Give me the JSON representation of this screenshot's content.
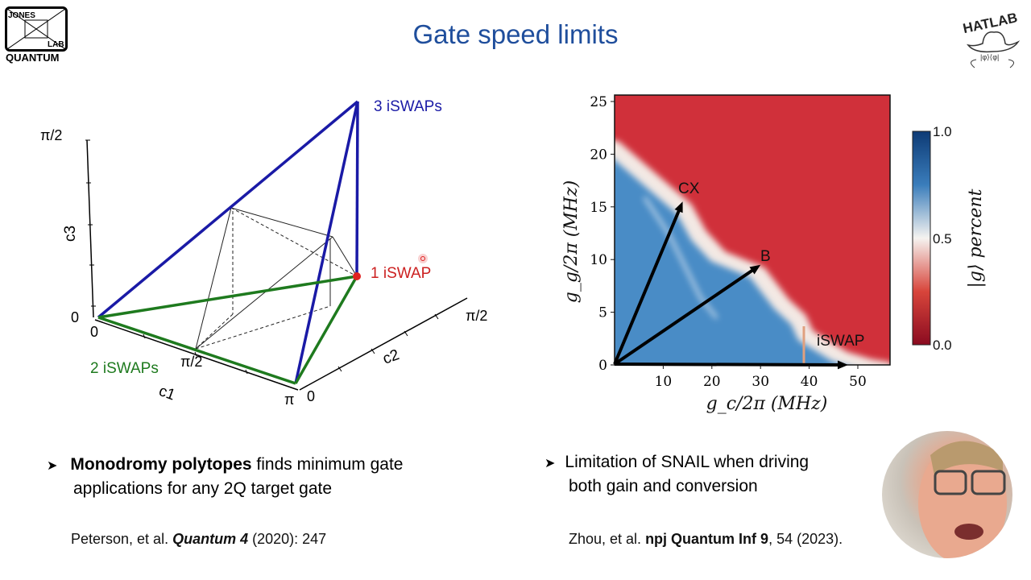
{
  "slide": {
    "title": "Gate speed limits",
    "logos": {
      "left": "JONES LAB QUANTUM",
      "right": "HATLAB"
    }
  },
  "polytope": {
    "labels": {
      "three_iswaps": "3 iSWAPs",
      "one_iswap": "1 iSWAP",
      "two_iswaps": "2 iSWAPs"
    },
    "axes": {
      "c1": {
        "label": "c1",
        "ticks": [
          "0",
          "π/2",
          "π"
        ]
      },
      "c2": {
        "label": "c2",
        "ticks": [
          "0",
          "π/2"
        ]
      },
      "c3": {
        "label": "c3",
        "ticks": [
          "0",
          "π/2"
        ]
      }
    },
    "colors": {
      "three": "#1a1aa6",
      "two": "#1e7a1e",
      "one": "#e02020"
    }
  },
  "heatmap": {
    "xlabel": "g_c/2π  (MHz)",
    "ylabel": "g_g/2π  (MHz)",
    "xticks": [
      "10",
      "20",
      "30",
      "40",
      "50"
    ],
    "yticks": [
      "0",
      "5",
      "10",
      "15",
      "20",
      "25"
    ],
    "colorbar": {
      "label": "|g⟩ percent",
      "ticks": [
        "1.0",
        "0.5",
        "0.0"
      ],
      "low_color": "#b2182b",
      "mid_color": "#f7f7f7",
      "high_color": "#2166ac"
    },
    "annotations": [
      "CX",
      "B",
      "iSWAP"
    ]
  },
  "left_text": {
    "bullet_bold": "Monodromy polytopes",
    "bullet_rest": " finds minimum gate",
    "bullet_line2": "applications for any 2Q target gate",
    "ref_pre": "Peterson, et al. ",
    "ref_journal": "Quantum 4",
    "ref_post": " (2020): 247"
  },
  "right_text": {
    "bullet_line1": "Limitation of SNAIL when driving",
    "bullet_line2": "both gain and conversion",
    "ref_pre": "Zhou, et al. ",
    "ref_journal": "npj Quantum Inf 9",
    "ref_post": ", 54 (2023)."
  }
}
